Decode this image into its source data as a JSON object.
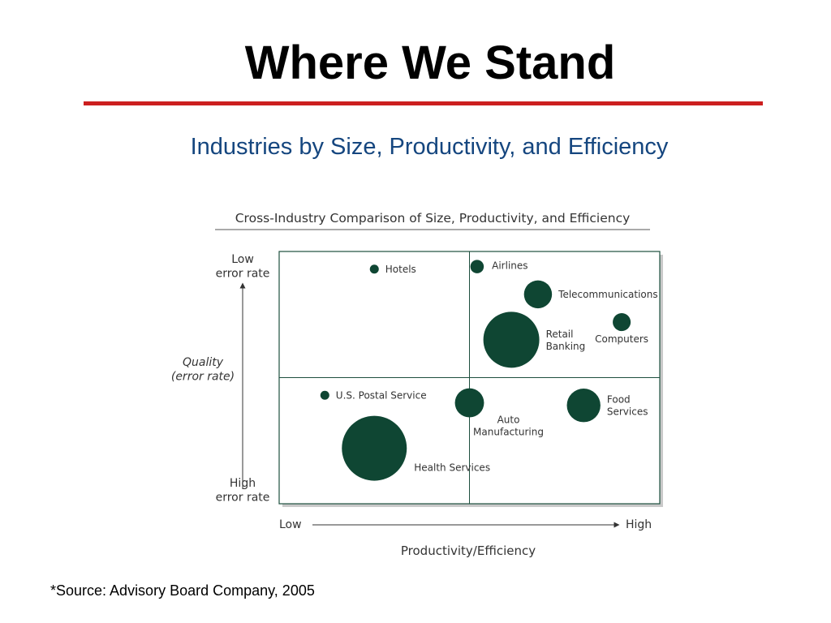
{
  "slide": {
    "title": "Where We Stand",
    "subtitle": "Industries by Size, Productivity, and Efficiency",
    "source": "*Source: Advisory Board Company, 2005",
    "accent_rule_color": "#cc1f1f",
    "subtitle_color": "#15467f"
  },
  "chart_data": {
    "type": "scatter",
    "title": "Cross-Industry Comparison of Size, Productivity, and Efficiency",
    "xlabel": "Productivity/Efficiency",
    "ylabel": "Quality (error rate)",
    "ylabel_lines": [
      "Quality",
      "(error rate)"
    ],
    "x_low_label": "Low",
    "x_high_label": "High",
    "y_top_label": [
      "Low",
      "error rate"
    ],
    "y_bottom_label": [
      "High",
      "error rate"
    ],
    "xlim": [
      0,
      1
    ],
    "ylim": [
      0,
      1
    ],
    "quadrant_dividers": {
      "x": 0.5,
      "y": 0.5
    },
    "marker_color": "#0f4633",
    "points": [
      {
        "label": [
          "Hotels"
        ],
        "x": 0.25,
        "y": 0.93,
        "size": 0.16,
        "label_pos": "right"
      },
      {
        "label": [
          "Airlines"
        ],
        "x": 0.52,
        "y": 0.94,
        "size": 0.24,
        "label_pos": "right-up"
      },
      {
        "label": [
          "Telecommunications"
        ],
        "x": 0.68,
        "y": 0.83,
        "size": 0.5,
        "label_pos": "right"
      },
      {
        "label": [
          "Computers"
        ],
        "x": 0.9,
        "y": 0.72,
        "size": 0.32,
        "label_pos": "below"
      },
      {
        "label": [
          "Retail",
          "Banking"
        ],
        "x": 0.61,
        "y": 0.65,
        "size": 1.0,
        "label_pos": "right"
      },
      {
        "label": [
          "U.S. Postal Service"
        ],
        "x": 0.12,
        "y": 0.43,
        "size": 0.16,
        "label_pos": "right"
      },
      {
        "label": [
          "Auto",
          "Manufacturing"
        ],
        "x": 0.5,
        "y": 0.4,
        "size": 0.52,
        "label_pos": "below-right"
      },
      {
        "label": [
          "Food",
          "Services"
        ],
        "x": 0.8,
        "y": 0.39,
        "size": 0.6,
        "label_pos": "right"
      },
      {
        "label": [
          "Health Services"
        ],
        "x": 0.25,
        "y": 0.22,
        "size": 1.16,
        "label_pos": "right-down"
      }
    ]
  }
}
